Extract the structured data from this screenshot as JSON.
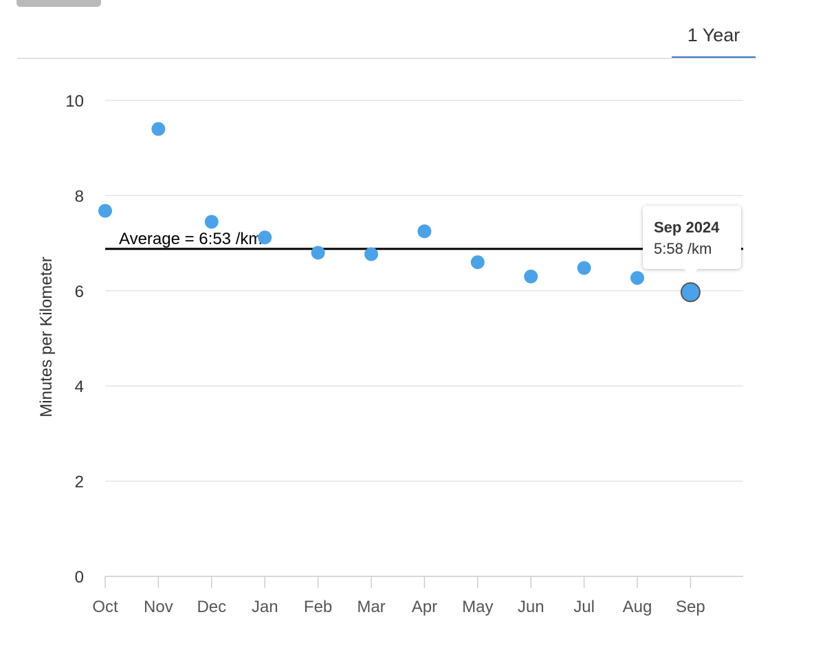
{
  "tabs": [
    {
      "label": "1 Year",
      "active": true
    }
  ],
  "tooltip": {
    "title": "Sep 2024",
    "value": "5:58 /km"
  },
  "chart_data": {
    "type": "scatter",
    "ylabel": "Minutes per Kilometer",
    "xlabel": "",
    "ylim": [
      0,
      10
    ],
    "yticks": [
      0,
      2,
      4,
      6,
      8,
      10
    ],
    "grid": true,
    "categories": [
      "Oct",
      "Nov",
      "Dec",
      "Jan",
      "Feb",
      "Mar",
      "Apr",
      "May",
      "Jun",
      "Jul",
      "Aug",
      "Sep"
    ],
    "series": [
      {
        "values": [
          7.68,
          9.4,
          7.45,
          7.12,
          6.8,
          6.77,
          7.25,
          6.6,
          6.3,
          6.48,
          6.27,
          5.97
        ]
      }
    ],
    "average": {
      "value": 6.88,
      "label": "Average = 6:53 /km"
    },
    "highlighted_index": 11,
    "colors": {
      "point": "#4aa3e8",
      "highlight_stroke": "#555555",
      "grid": "#e3e3e3",
      "axis_text": "#555555",
      "average_line": "#000000"
    }
  }
}
